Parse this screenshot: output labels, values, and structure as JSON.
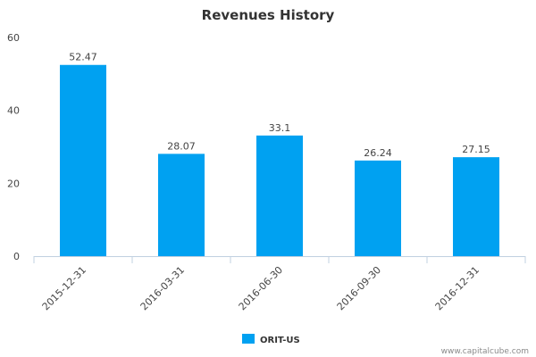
{
  "chart_data": {
    "type": "bar",
    "title": "Revenues History",
    "categories": [
      "2015-12-31",
      "2016-03-31",
      "2016-06-30",
      "2016-09-30",
      "2016-12-31"
    ],
    "series": [
      {
        "name": "ORIT-US",
        "values": [
          52.47,
          28.07,
          33.1,
          26.24,
          27.15
        ],
        "labels": [
          "52.47",
          "28.07",
          "33.1",
          "26.24",
          "27.15"
        ],
        "color": "#00a1f1"
      }
    ],
    "xlabel": "",
    "ylabel": "",
    "ylim": [
      0,
      60
    ],
    "yticks": [
      "0",
      "20",
      "40",
      "60"
    ],
    "grid": false,
    "legend_position": "bottom-center"
  },
  "credit": "www.capitalcube.com",
  "colors": {
    "bar": "#00a1f1",
    "axis": "#c0d0e0"
  }
}
